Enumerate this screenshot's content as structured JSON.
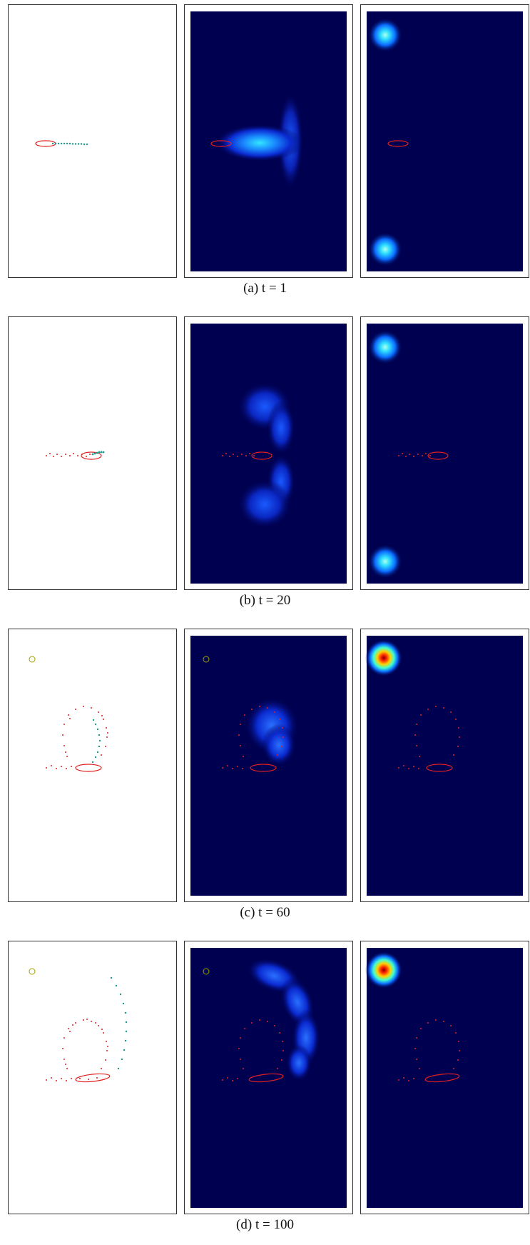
{
  "figure": {
    "rows": [
      {
        "id": "a",
        "caption": "(a) t = 1"
      },
      {
        "id": "b",
        "caption": "(b) t = 20"
      },
      {
        "id": "c",
        "caption": "(c) t = 60"
      },
      {
        "id": "d",
        "caption": "(d) t = 100"
      }
    ]
  },
  "colors": {
    "heatmap_background": "#000050",
    "trajectory_red": "#e02020",
    "prediction_teal": "#1a9a8a",
    "goal_marker": "#a0a000"
  }
}
